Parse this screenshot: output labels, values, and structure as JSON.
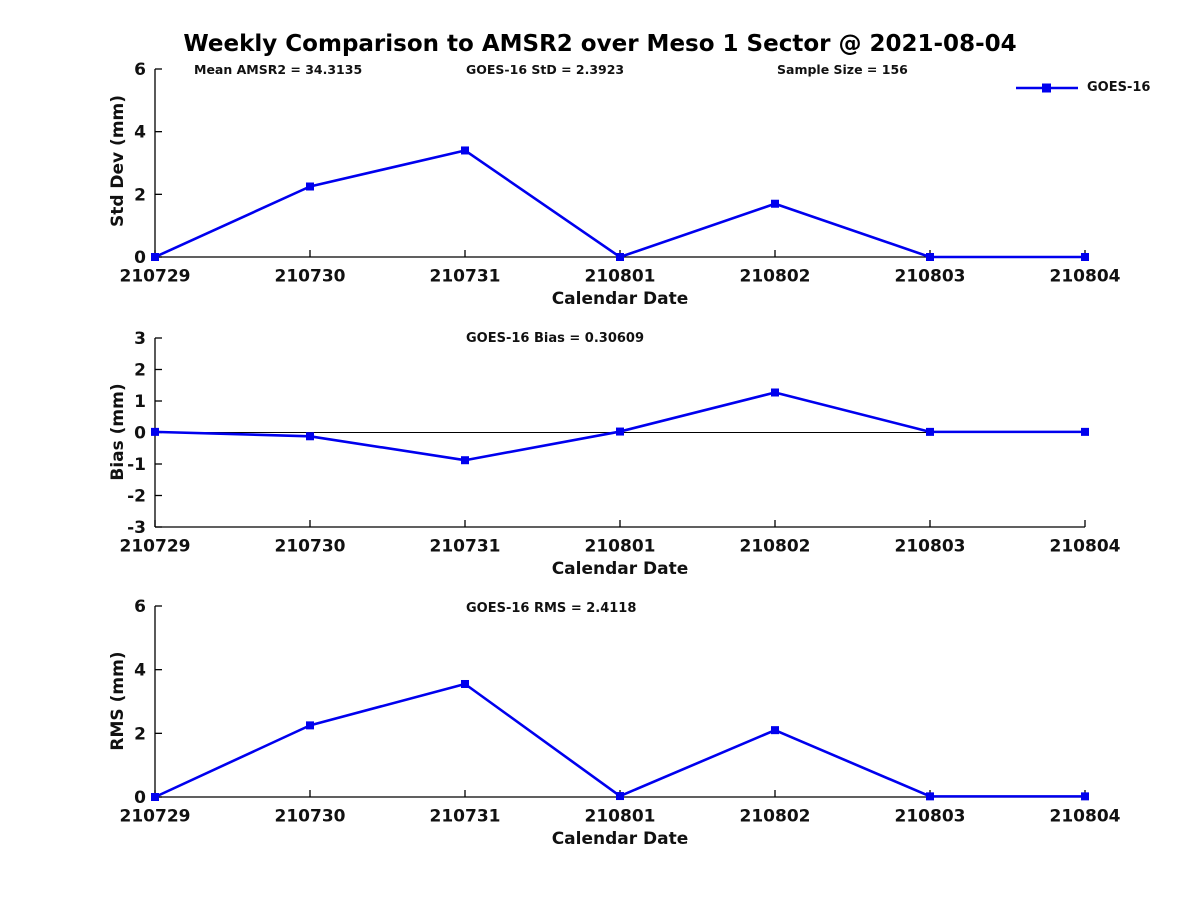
{
  "figure_title": "Weekly Comparison to AMSR2 over Meso 1 Sector @ 2021-08-04",
  "annotations": [
    {
      "label": "Mean AMSR2 = 34.3135"
    },
    {
      "label": "GOES-16 StD = 2.3923"
    },
    {
      "label": "Sample Size = 156"
    }
  ],
  "legend": {
    "label": "GOES-16",
    "position": "top-right",
    "marker": "filled-square"
  },
  "colors": {
    "series": "#0000EE",
    "axis": "#000000",
    "zero_line": "#000000",
    "text": "#111111",
    "background": "#ffffff"
  },
  "chart_data": [
    {
      "type": "line",
      "title": "",
      "ylabel": "Std Dev (mm)",
      "xlabel": "Calendar Date",
      "categories": [
        "210729",
        "210730",
        "210731",
        "210801",
        "210802",
        "210803",
        "210804"
      ],
      "series": [
        {
          "name": "GOES-16",
          "values": [
            0,
            2.25,
            3.4,
            0,
            1.7,
            0,
            0
          ]
        }
      ],
      "ylim": [
        0,
        6
      ],
      "yticks": [
        0,
        2,
        4,
        6
      ],
      "zero_line": false,
      "grid": false,
      "legend_position": "top-right"
    },
    {
      "type": "line",
      "title": "GOES-16 Bias  = 0.30609",
      "ylabel": "Bias (mm)",
      "xlabel": "Calendar Date",
      "categories": [
        "210729",
        "210730",
        "210731",
        "210801",
        "210802",
        "210803",
        "210804"
      ],
      "series": [
        {
          "name": "GOES-16",
          "values": [
            0.02,
            -0.12,
            -0.88,
            0.03,
            1.27,
            0.02,
            0.02
          ]
        }
      ],
      "ylim": [
        -3,
        3
      ],
      "yticks": [
        3,
        2,
        1,
        0,
        -1,
        -2,
        -3
      ],
      "zero_line": true,
      "grid": false,
      "legend_position": "none"
    },
    {
      "type": "line",
      "title": "GOES-16 RMS = 2.4118",
      "ylabel": "RMS (mm)",
      "xlabel": "Calendar Date",
      "categories": [
        "210729",
        "210730",
        "210731",
        "210801",
        "210802",
        "210803",
        "210804"
      ],
      "series": [
        {
          "name": "GOES-16",
          "values": [
            0,
            2.25,
            3.55,
            0.03,
            2.1,
            0.02,
            0.02
          ]
        }
      ],
      "ylim": [
        0,
        6
      ],
      "yticks": [
        0,
        2,
        4,
        6
      ],
      "zero_line": false,
      "grid": false,
      "legend_position": "none"
    }
  ]
}
